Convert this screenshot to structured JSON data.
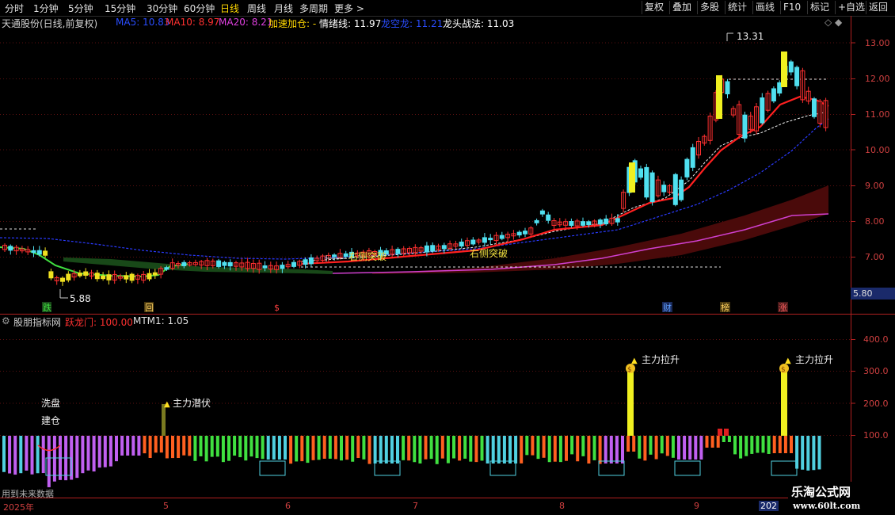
{
  "toolbar": {
    "periods": [
      "分时",
      "1分钟",
      "5分钟",
      "15分钟",
      "30分钟",
      "60分钟",
      "日线",
      "周线",
      "月线",
      "多周期",
      "更多 >"
    ],
    "active_period": "日线",
    "right_buttons": [
      "复权",
      "叠加",
      "多股",
      "统计",
      "画线",
      "F10",
      "标记",
      "+自选",
      "返回"
    ]
  },
  "main_header": {
    "stock": "天通股份(日线,前复权)",
    "ma5": "MA5: 10.83",
    "ma10": "MA10: 8.97",
    "ma20": "MA20: 8.21",
    "jiasu": "加速加仓: -",
    "qingxu": "情绪线: 11.97",
    "longkong": "龙空龙: 11.21",
    "longtou": "龙头战法: 11.03",
    "controls": "◇ ◆",
    "colors": {
      "stock": "#d0d0d0",
      "ma5": "#2a4dff",
      "ma10": "#ff3030",
      "ma20": "#e040e0",
      "jiasu": "#ffd700",
      "qingxu": "#ffffff",
      "longkong": "#2a4dff",
      "longtou": "#ffffff"
    }
  },
  "sub_header": {
    "name": "股朋指标网",
    "yuelongmen": "跃龙门: 100.00",
    "mtm1": "MTM1: 1.05"
  },
  "price_axis": {
    "labels": [
      "13.00",
      "12.00",
      "11.00",
      "10.00",
      "9.00",
      "8.00",
      "7.00"
    ],
    "current_box": "5.80"
  },
  "indicator_axis": {
    "labels": [
      "400.0",
      "300.0",
      "200.0",
      "100.0"
    ]
  },
  "annotations": {
    "high_price": "13.31",
    "low_price": "5.88",
    "right_breakout_1": "右侧突破",
    "right_breakout_2": "右侧突破",
    "zhuli_lasheng_1": "主力拉升",
    "zhuli_lasheng_2": "主力拉升",
    "zhuli_qianfu": "主力潜伏",
    "xipan": "洗盘",
    "jiancang": "建仓",
    "event_die": "跌",
    "event_hui": "回",
    "event_dollar": "$",
    "event_cai": "财",
    "event_bang": "榜",
    "event_zhang": "涨"
  },
  "date_axis": {
    "labels": [
      "2025年",
      "5",
      "6",
      "7",
      "8",
      "9",
      "202"
    ]
  },
  "footer_note": "用到未来数据",
  "watermark": {
    "title": "乐淘公式网",
    "url": "www.60lt.com"
  }
}
